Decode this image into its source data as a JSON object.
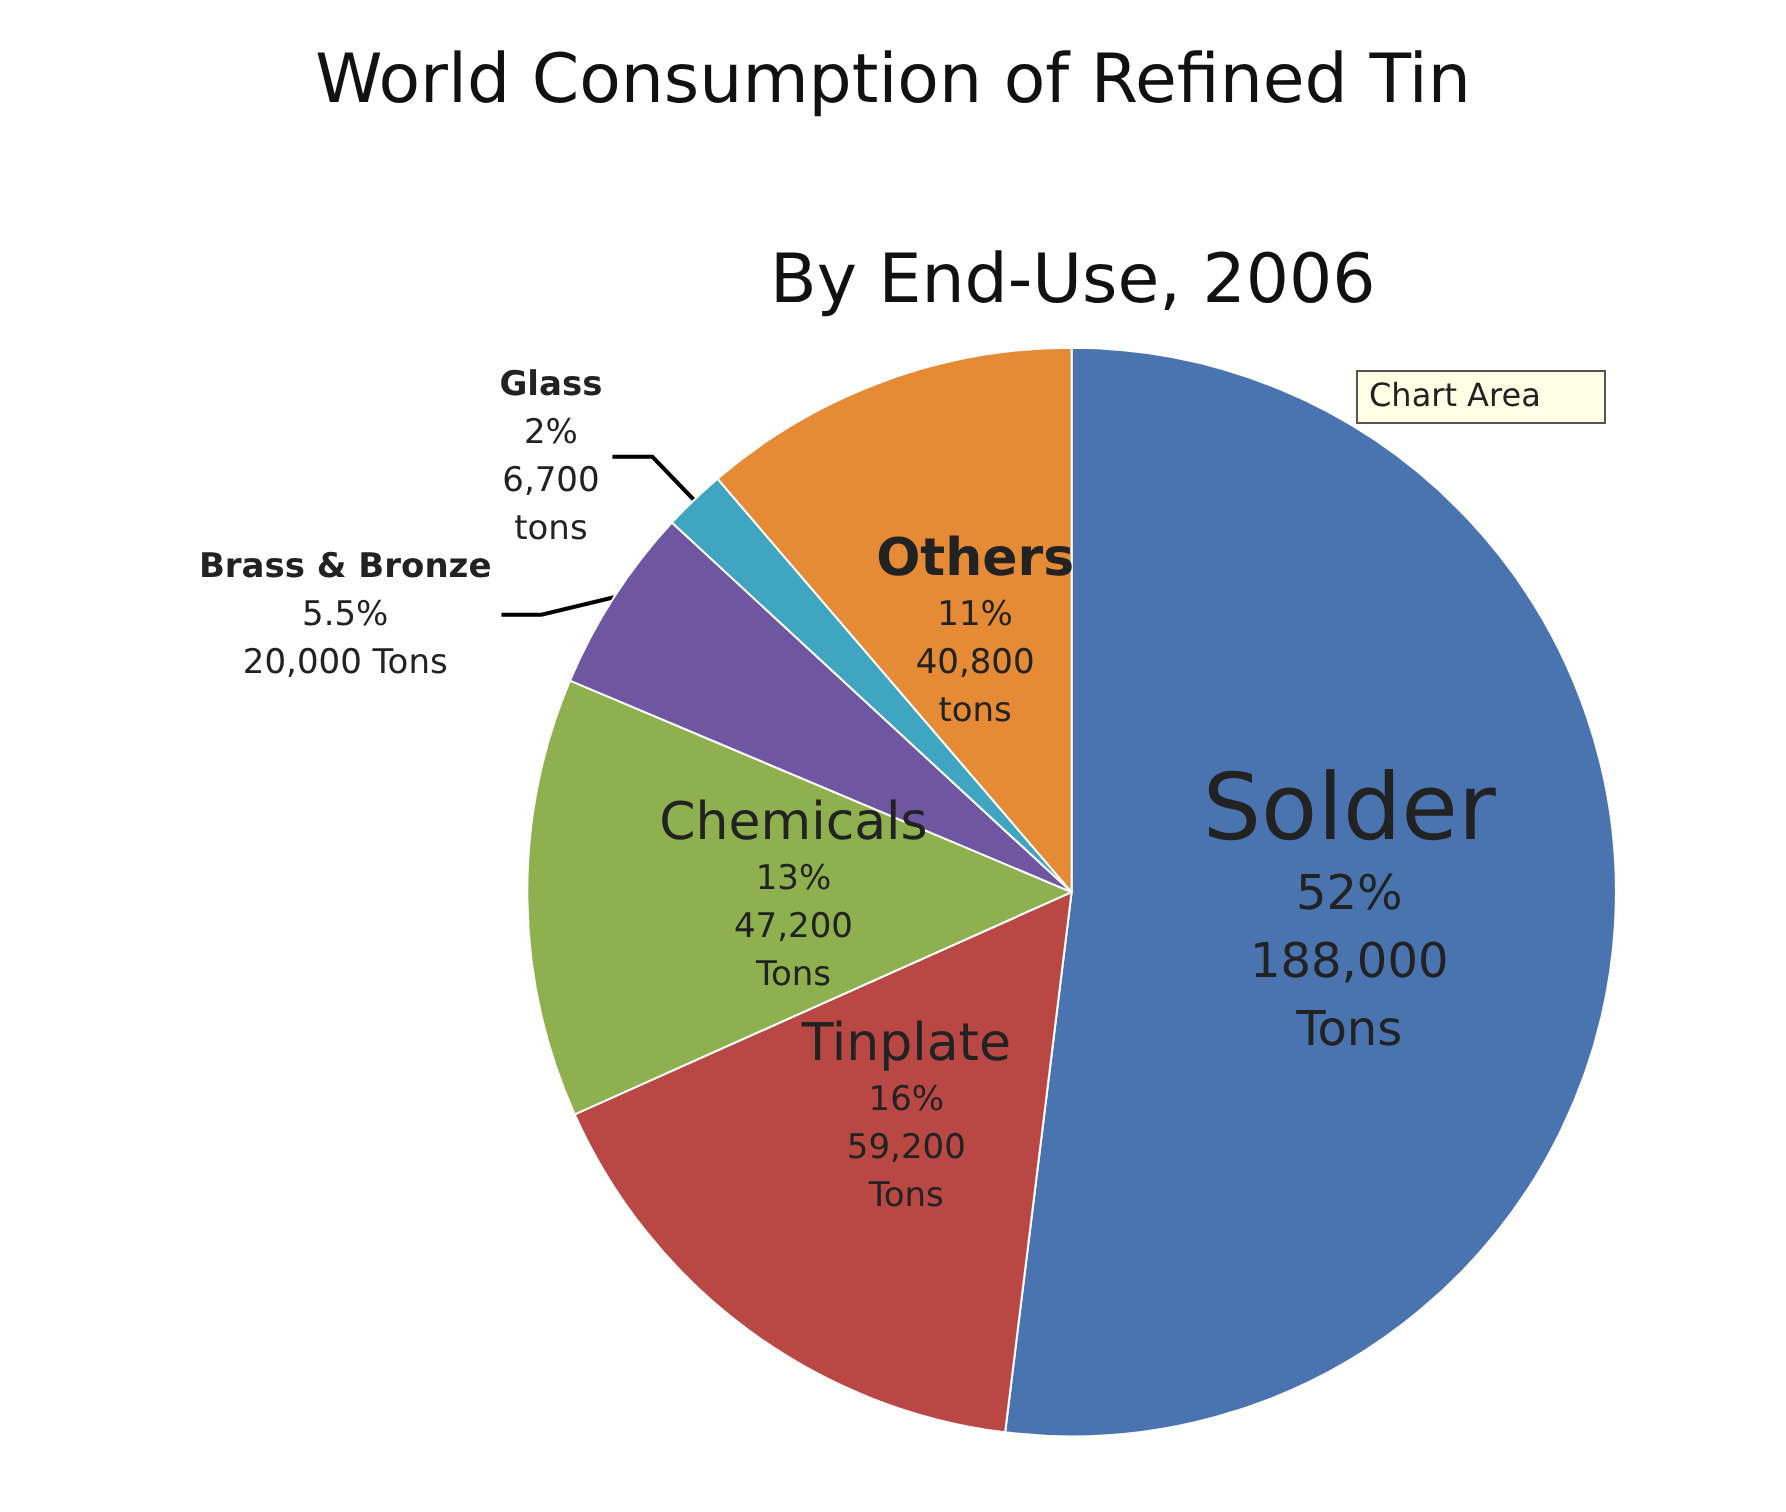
{
  "chart_data": {
    "type": "pie",
    "title": "World Consumption of Refined Tin",
    "subtitle": "By End-Use, 2006",
    "categories": [
      "Solder",
      "Tinplate",
      "Chemicals",
      "Brass & Bronze",
      "Glass",
      "Others"
    ],
    "values": [
      188000,
      59200,
      47200,
      20000,
      6700,
      40800
    ],
    "colors": [
      "#4a74b0",
      "#b94845",
      "#8fb04e",
      "#6f56a0",
      "#3fa5c0",
      "#e58a35"
    ],
    "value_labels": [
      "52%\n188,000\nTons",
      "16%\n59,200\nTons",
      "13%\n47,200\nTons",
      "5.5%\n20,000 Tons",
      "2%\n6,700\ntons",
      "11%\n40,800\ntons"
    ],
    "annotations": [
      "Chart Area"
    ]
  }
}
